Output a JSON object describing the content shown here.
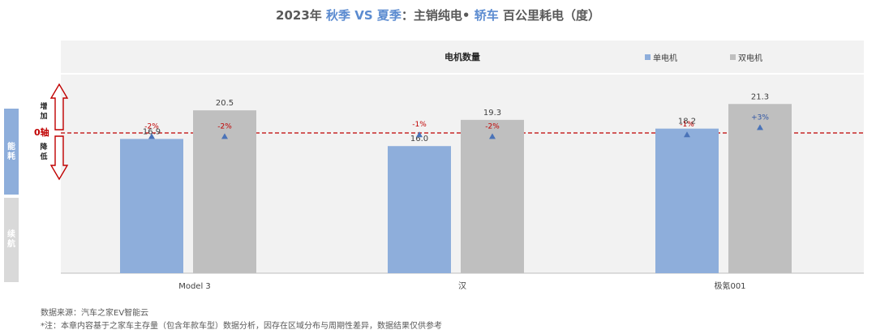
{
  "title": {
    "part1": "2023年 ",
    "part2": "秋季 VS 夏季",
    "part3": "：主销纯电• ",
    "part4": "轿车",
    "part5": " 百公里耗电（度）"
  },
  "side": {
    "energy_label": "能耗",
    "range_label": "续航",
    "increase_label": "增加",
    "decrease_label": "降低",
    "zero_axis_label": "0轴"
  },
  "source": {
    "line1": "数据来源：汽车之家EV智能云",
    "line2": "*注：本章内容基于之家车主存量（包含年款车型）数据分析，因存在区域分布与周期性差异，数据结果仅供参考"
  },
  "colors": {
    "single_motor": "#8eaedb",
    "dual_motor": "#bfbfbf",
    "negative_change": "#c00000",
    "positive_change": "#2f55a4",
    "marker": "#4a73b8",
    "zero_line": "#c00000"
  },
  "chart_data": {
    "type": "bar",
    "title": "2023年 秋季 VS 夏季：主销纯电• 轿车 百公里耗电（度）",
    "header_label": "电机数量",
    "categories": [
      "Model 3",
      "汉",
      "极氪001"
    ],
    "series": [
      {
        "name": "单电机",
        "values": [
          16.9,
          16.0,
          18.2
        ],
        "change_labels": [
          "-2%",
          "-1%",
          "-1%"
        ],
        "change": [
          -2,
          -1,
          -1
        ]
      },
      {
        "name": "双电机",
        "values": [
          20.5,
          19.3,
          21.3
        ],
        "change_labels": [
          "-2%",
          "-2%",
          "+3%"
        ],
        "change": [
          -2,
          -2,
          3
        ]
      }
    ],
    "ylim": [
      0,
      25
    ],
    "legend_position": "top-right",
    "grid": false
  }
}
